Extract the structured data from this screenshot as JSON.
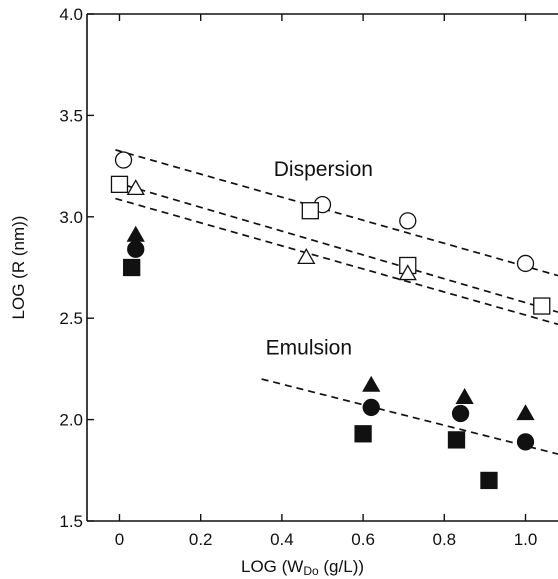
{
  "chart_data": {
    "type": "scatter",
    "xlabel_main": "LOG (W",
    "xlabel_sub": "Do",
    "xlabel_tail": " (g/L))",
    "ylabel": "LOG (R (nm))",
    "xlim": [
      -0.08,
      1.08
    ],
    "ylim": [
      1.5,
      4.0
    ],
    "x_ticks": [
      0,
      0.2,
      0.4,
      0.6,
      0.8,
      1.0
    ],
    "x_tick_labels": [
      "0",
      "0.2",
      "0.4",
      "0.6",
      "0.8",
      "1.0"
    ],
    "y_ticks": [
      1.5,
      2.0,
      2.5,
      3.0,
      3.5,
      4.0
    ],
    "y_tick_labels": [
      "1.5",
      "2.0",
      "2.5",
      "3.0",
      "3.5",
      "4.0"
    ],
    "grid": false,
    "annotations": [
      {
        "text": "Dispersion",
        "x": 0.38,
        "y": 3.2
      },
      {
        "text": "Emulsion",
        "x": 0.36,
        "y": 2.32
      }
    ],
    "series": [
      {
        "marker": "open-circle",
        "points": [
          [
            0.01,
            3.28
          ],
          [
            0.5,
            3.06
          ],
          [
            0.71,
            2.98
          ],
          [
            1.0,
            2.77
          ]
        ]
      },
      {
        "marker": "open-square",
        "points": [
          [
            0.0,
            3.16
          ],
          [
            0.47,
            3.03
          ],
          [
            0.71,
            2.76
          ],
          [
            1.04,
            2.56
          ]
        ]
      },
      {
        "marker": "open-triangle",
        "points": [
          [
            0.04,
            3.14
          ],
          [
            0.46,
            2.8
          ],
          [
            0.71,
            2.72
          ]
        ]
      },
      {
        "marker": "filled-triangle",
        "points": [
          [
            0.04,
            2.91
          ],
          [
            0.62,
            2.17
          ],
          [
            0.85,
            2.11
          ],
          [
            1.0,
            2.03
          ]
        ]
      },
      {
        "marker": "filled-circle",
        "points": [
          [
            0.04,
            2.84
          ],
          [
            0.62,
            2.06
          ],
          [
            0.84,
            2.03
          ],
          [
            1.0,
            1.89
          ]
        ]
      },
      {
        "marker": "filled-square",
        "points": [
          [
            0.03,
            2.75
          ],
          [
            0.6,
            1.93
          ],
          [
            0.83,
            1.9
          ],
          [
            0.91,
            1.7
          ]
        ]
      }
    ],
    "fit_lines": [
      {
        "from": [
          -0.01,
          3.33
        ],
        "to": [
          1.08,
          2.71
        ]
      },
      {
        "from": [
          -0.01,
          3.17
        ],
        "to": [
          1.08,
          2.53
        ]
      },
      {
        "from": [
          -0.01,
          3.09
        ],
        "to": [
          1.08,
          2.47
        ]
      },
      {
        "from": [
          0.35,
          2.2
        ],
        "to": [
          1.08,
          1.83
        ]
      }
    ]
  }
}
